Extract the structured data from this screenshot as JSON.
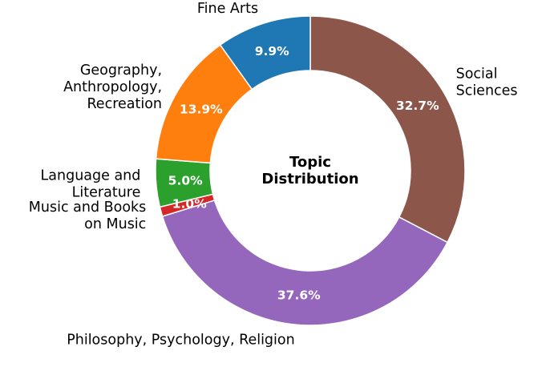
{
  "chart_data": {
    "type": "pie",
    "donut": true,
    "title": "Topic\nDistribution",
    "start_angle_deg": 90,
    "direction": "clockwise",
    "slices": [
      {
        "label": "Social\nSciences",
        "value": 32.7,
        "pct_label": "32.7%",
        "color": "#8c564b"
      },
      {
        "label": "Philosophy, Psychology, Religion",
        "value": 37.6,
        "pct_label": "37.6%",
        "color": "#9467bd"
      },
      {
        "label": "Music and Books\non Music",
        "value": 1.0,
        "pct_label": "1.0%",
        "color": "#d62728"
      },
      {
        "label": "Language and\nLiterature",
        "value": 5.0,
        "pct_label": "5.0%",
        "color": "#2ca02c"
      },
      {
        "label": "Geography,\nAnthropology,\nRecreation",
        "value": 13.9,
        "pct_label": "13.9%",
        "color": "#ff7f0e"
      },
      {
        "label": "Fine Arts",
        "value": 9.9,
        "pct_label": "9.9%",
        "color": "#1f77b4"
      }
    ]
  }
}
